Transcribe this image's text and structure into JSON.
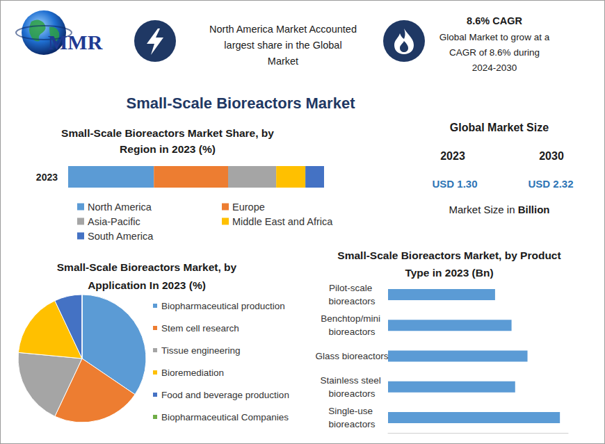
{
  "header": {
    "logo": "MMR",
    "region_note": "North America Market Accounted largest share in the Global Market",
    "cagr_title": "8.6% CAGR",
    "cagr_text": "Global Market to grow at a CAGR of 8.6% during 2024-2030"
  },
  "title": "Small-Scale Bioreactors Market",
  "market_size": {
    "title": "Global Market Size",
    "years": [
      "2023",
      "2030"
    ],
    "labels": [
      "USD 1.30",
      "USD 2.32"
    ],
    "note": "Market Size in",
    "unit": "Billion"
  },
  "chart_data": [
    {
      "type": "bar",
      "title": "Small-Scale Bioreactors Market Share, by Region in 2023 (%)",
      "orientation": "horizontal",
      "stacked": true,
      "categories": [
        "2023"
      ],
      "series": [
        {
          "name": "North America",
          "color": "#5b9bd5",
          "values": [
            33.5
          ]
        },
        {
          "name": "Europe",
          "color": "#ed7d31",
          "values": [
            29
          ]
        },
        {
          "name": "Asia-Pacific",
          "color": "#a5a5a5",
          "values": [
            18.8
          ]
        },
        {
          "name": "Middle East and Africa",
          "color": "#ffc000",
          "values": [
            11.4
          ]
        },
        {
          "name": "South America",
          "color": "#4472c4",
          "values": [
            7.3
          ]
        }
      ],
      "xlim": [
        0,
        100
      ],
      "tick_labels": "y",
      "legend": "bottom"
    },
    {
      "type": "pie",
      "title": "Small-Scale Bioreactors Market, by Application In 2023 (%)",
      "categories": [
        "Biopharmaceutical production",
        "Stem cell research",
        "Tissue engineering",
        "Bioremediation",
        "Food and beverage production",
        "Biopharmaceutical Companies"
      ],
      "values": [
        34.5,
        22.5,
        19.5,
        16.5,
        7,
        0
      ],
      "colors": [
        "#5b9bd5",
        "#ed7d31",
        "#a5a5a5",
        "#ffc000",
        "#4472c4",
        "#70ad47"
      ],
      "legend": "right"
    },
    {
      "type": "bar",
      "title": "Small-Scale Bioreactors Market, by Product Type in 2023 (Bn)",
      "orientation": "horizontal",
      "categories": [
        "Pilot-scale bioreactors",
        "Benchtop/mini bioreactors",
        "Glass bioreactors",
        "Stainless steel bioreactors",
        "Single-use bioreactors"
      ],
      "values": [
        0.208,
        0.24,
        0.271,
        0.247,
        0.334
      ],
      "color": "#5b9bd5",
      "xlim": [
        0,
        0.35
      ],
      "tick_labels": "y"
    }
  ]
}
